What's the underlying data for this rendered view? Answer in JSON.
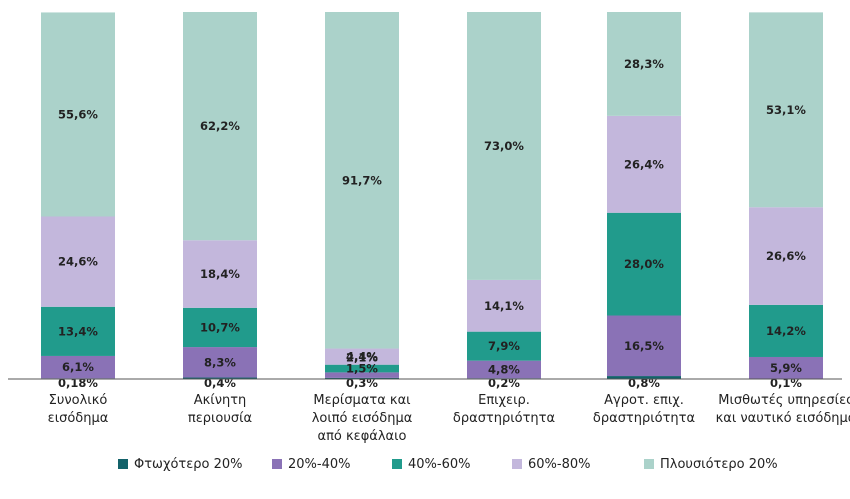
{
  "chart_data": {
    "type": "stacked-bar-100",
    "categories": [
      [
        "Συνολικό",
        "εισόδημα"
      ],
      [
        "Ακίνητη",
        "περιουσία"
      ],
      [
        "Μερίσματα και",
        "λοιπό εισόδημα",
        "από κεφάλαιο"
      ],
      [
        "Επιχειρ.",
        "δραστηριότητα"
      ],
      [
        "Αγροτ. επιχ.",
        "δραστηριότητα"
      ],
      [
        "Μισθωτές υπηρεσίες",
        "και ναυτικό εισόδημα"
      ]
    ],
    "series": [
      {
        "name": "Φτωχότερο 20%",
        "color": "#13626a",
        "values": [
          0.18,
          0.4,
          0.3,
          0.2,
          0.8,
          0.1
        ],
        "labels": [
          "0,18%",
          "0,4%",
          "0,3%",
          "0,2%",
          "0,8%",
          "0,1%"
        ]
      },
      {
        "name": "20%-40%",
        "color": "#8a72b6",
        "values": [
          6.1,
          8.3,
          1.5,
          4.8,
          16.5,
          5.9
        ],
        "labels": [
          "6,1%",
          "8,3%",
          "1,5%",
          "4,8%",
          "16,5%",
          "5,9%"
        ]
      },
      {
        "name": "40%-60%",
        "color": "#219b8c",
        "values": [
          13.4,
          10.7,
          2.1,
          7.9,
          28.0,
          14.2
        ],
        "labels": [
          "13,4%",
          "10,7%",
          "2,1%",
          "7,9%",
          "28,0%",
          "14,2%"
        ]
      },
      {
        "name": "60%-80%",
        "color": "#c3b7dc",
        "values": [
          24.6,
          18.4,
          4.4,
          14.1,
          26.4,
          26.6
        ],
        "labels": [
          "24,6%",
          "18,4%",
          "4,4%",
          "14,1%",
          "26,4%",
          "26,6%"
        ]
      },
      {
        "name": "Πλουσιότερο 20%",
        "color": "#abd2ca",
        "values": [
          55.6,
          62.2,
          91.7,
          73.0,
          28.3,
          53.1
        ],
        "labels": [
          "55,6%",
          "62,2%",
          "91,7%",
          "73,0%",
          "28,3%",
          "53,1%"
        ]
      }
    ],
    "ylim": [
      0,
      100
    ],
    "legend_position": "bottom",
    "grid": false
  }
}
